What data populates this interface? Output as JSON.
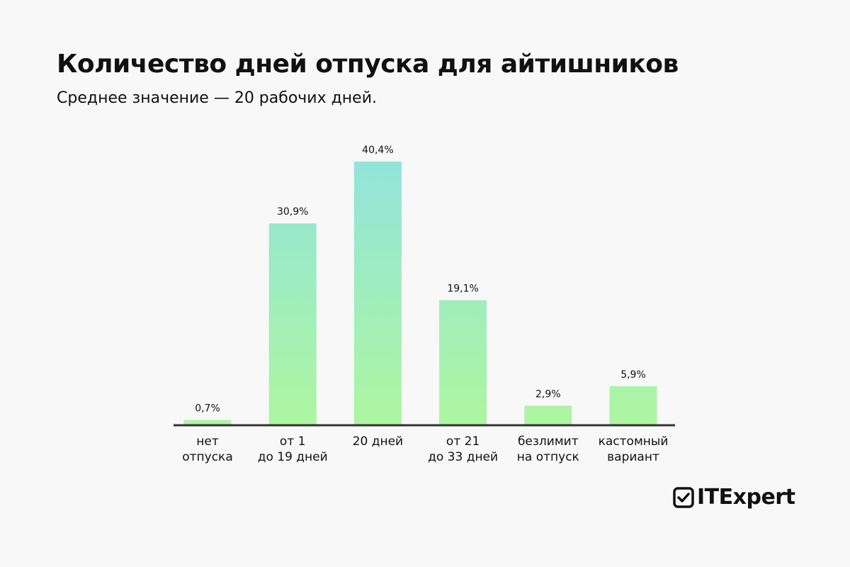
{
  "title": "Количество дней отпуска для айтишников",
  "subtitle": "Среднее значение — 20 рабочих дней.",
  "logo": "ITExpert",
  "colors": {
    "gradient_top": "#92e4da",
    "gradient_bottom": "#adf6a0",
    "axis": "#333333",
    "background": "#f8f8f8"
  },
  "chart_data": {
    "type": "bar",
    "categories": [
      [
        "нет",
        "отпуска"
      ],
      [
        "от 1",
        "до 19 дней"
      ],
      [
        "20 дней"
      ],
      [
        "от 21",
        "до 33 дней"
      ],
      [
        "безлимит",
        "на отпуск"
      ],
      [
        "кастомный",
        "вариант"
      ]
    ],
    "values": [
      0.7,
      30.9,
      40.4,
      19.1,
      2.9,
      5.9
    ],
    "labels": [
      "0,7%",
      "30,9%",
      "40,4%",
      "19,1%",
      "2,9%",
      "5,9%"
    ],
    "ylim": [
      0,
      40.4
    ],
    "grid": false
  }
}
